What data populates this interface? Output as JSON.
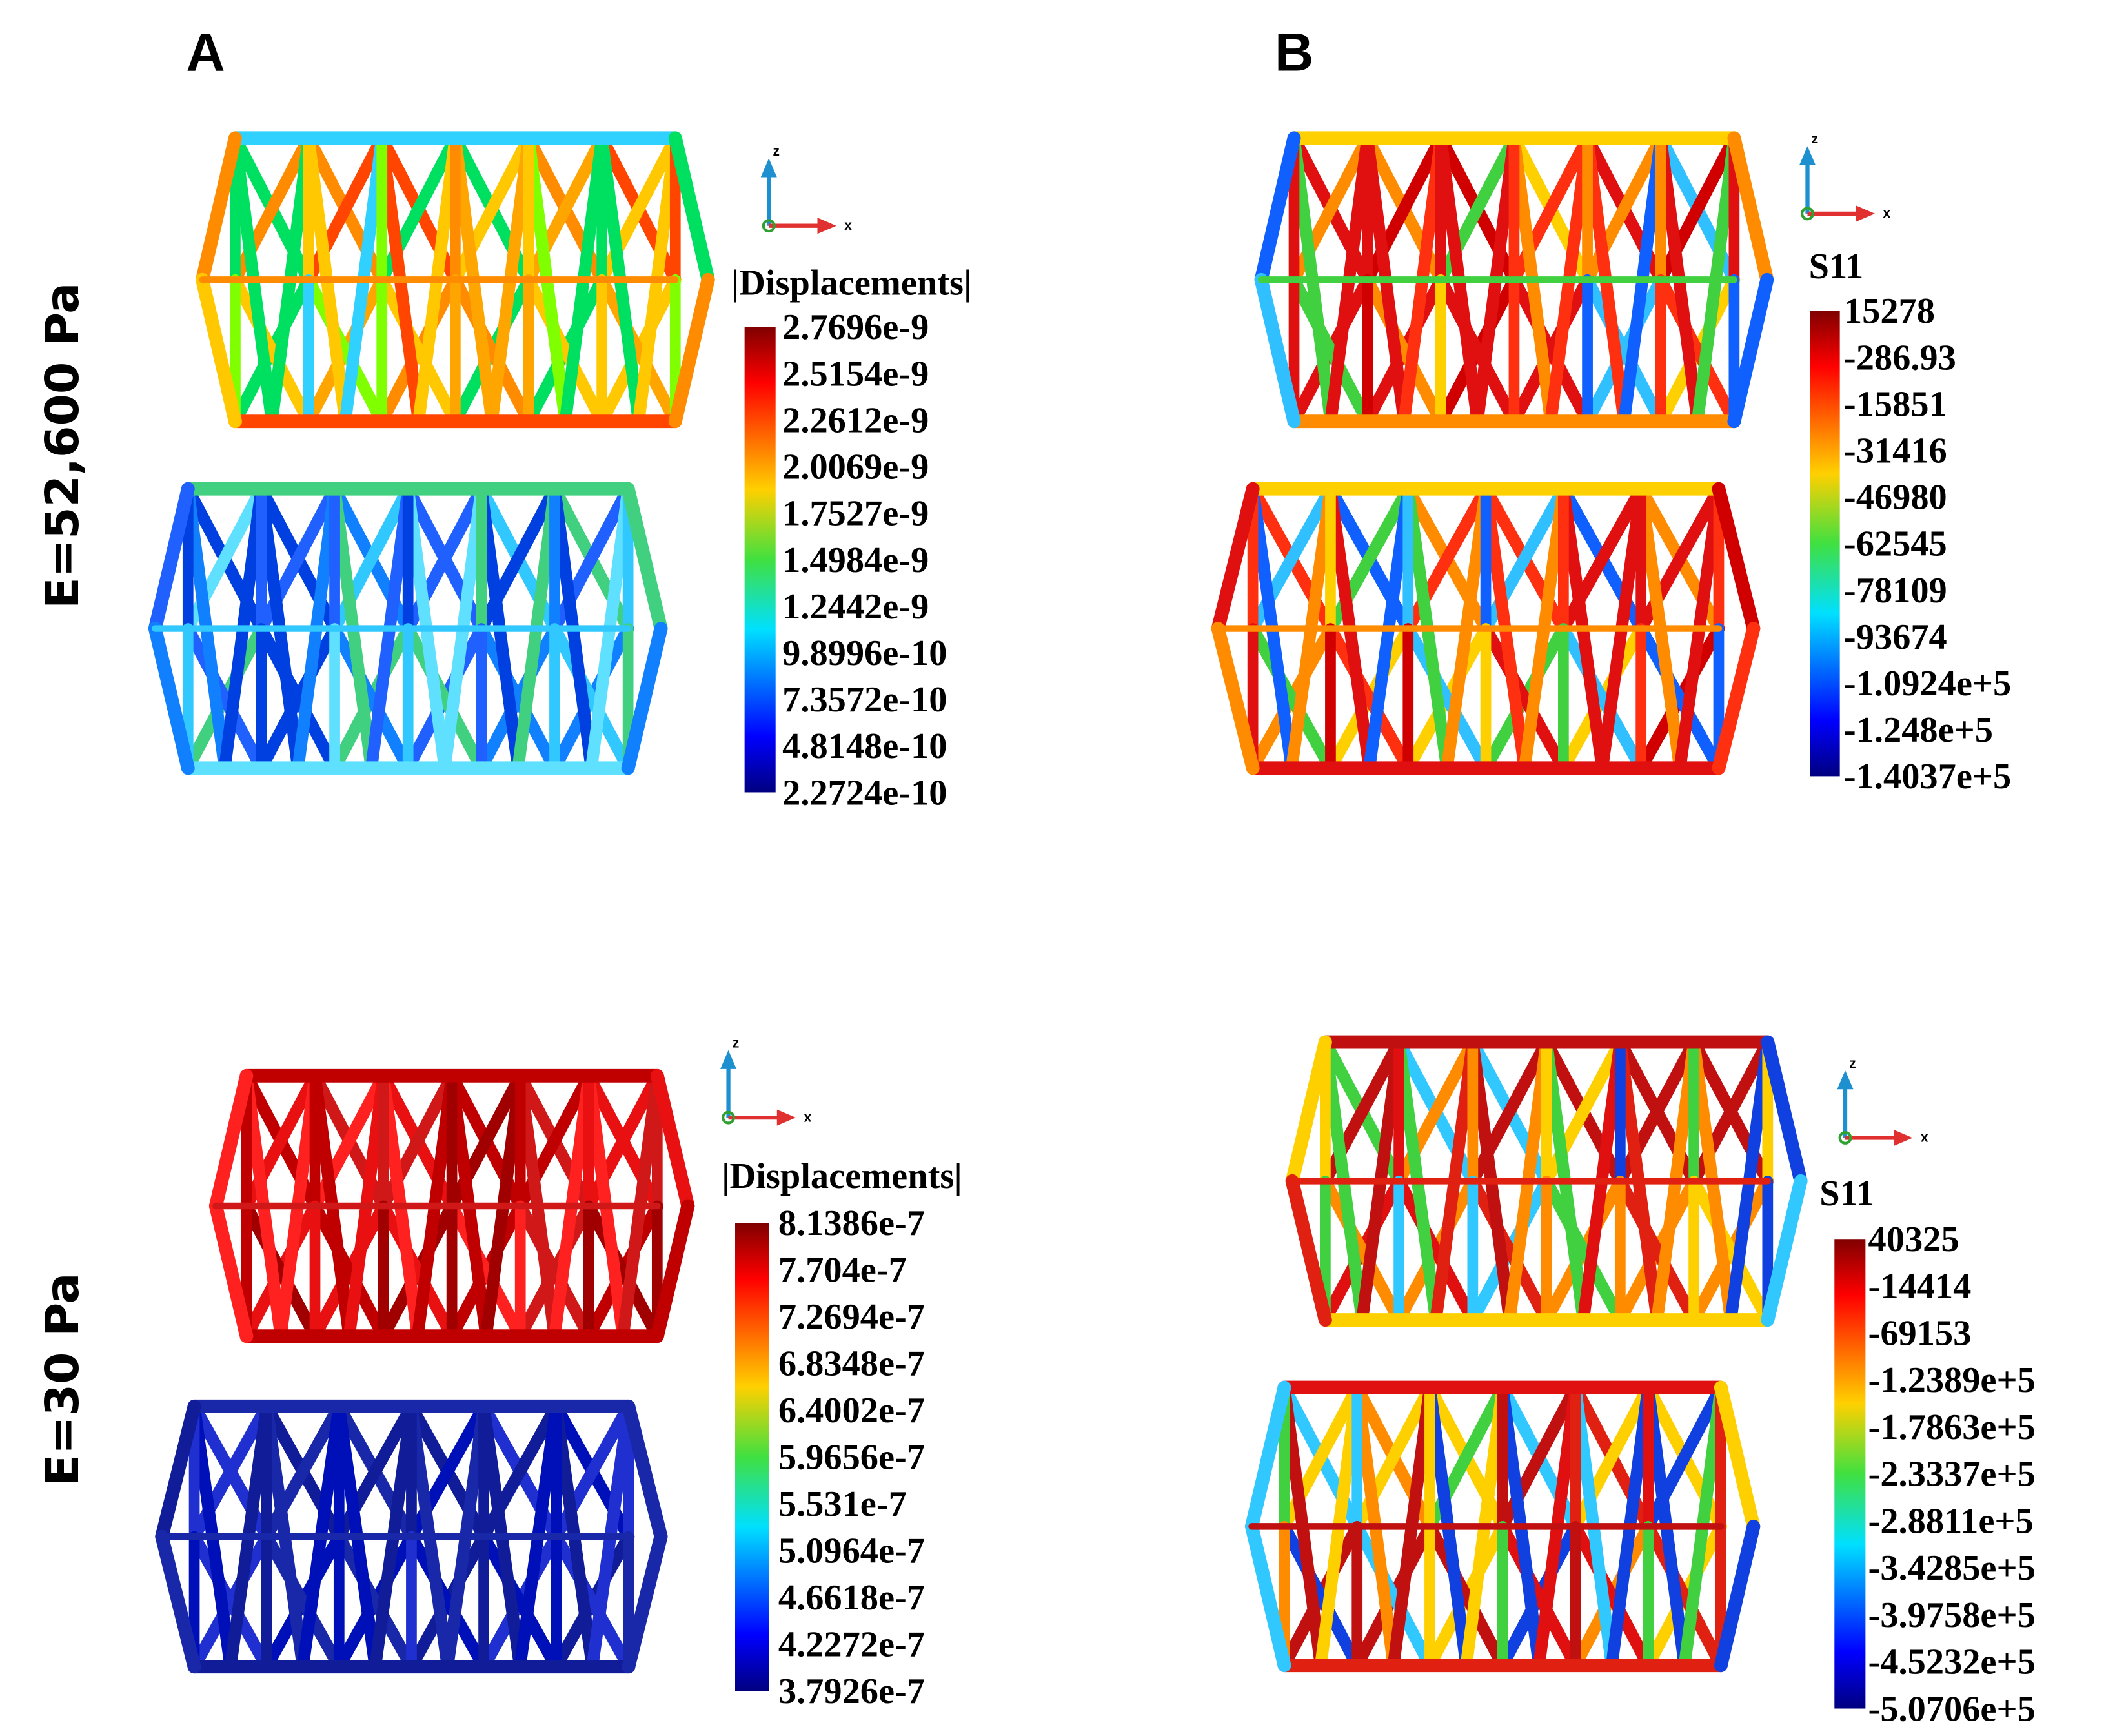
{
  "panel_labels": [
    "A",
    "B"
  ],
  "row_labels": [
    "E=52,600 Pa",
    "E=30  Pa"
  ],
  "triad": {
    "z": "z",
    "x": "x"
  },
  "legends": [
    {
      "title": "|Displacements|",
      "values": [
        "2.7696e-9",
        "2.5154e-9",
        "2.2612e-9",
        "2.0069e-9",
        "1.7527e-9",
        "1.4984e-9",
        "1.2442e-9",
        "9.8996e-10",
        "7.3572e-10",
        "4.8148e-10",
        "2.2724e-10"
      ]
    },
    {
      "title": "S11",
      "values": [
        "15278",
        "-286.93",
        "-15851",
        "-31416",
        "-46980",
        "-62545",
        "-78109",
        "-93674",
        "-1.0924e+5",
        "-1.248e+5",
        "-1.4037e+5"
      ]
    },
    {
      "title": "|Displacements|",
      "values": [
        "8.1386e-7",
        "7.704e-7",
        "7.2694e-7",
        "6.8348e-7",
        "6.4002e-7",
        "5.9656e-7",
        "5.531e-7",
        "5.0964e-7",
        "4.6618e-7",
        "4.2272e-7",
        "3.7926e-7"
      ]
    },
    {
      "title": "S11",
      "values": [
        "40325",
        "-14414",
        "-69153",
        "-1.2389e+5",
        "-1.7863e+5",
        "-2.3337e+5",
        "-2.8811e+5",
        "-3.4285e+5",
        "-3.9758e+5",
        "-4.5232e+5",
        "-5.0706e+5"
      ]
    }
  ]
}
